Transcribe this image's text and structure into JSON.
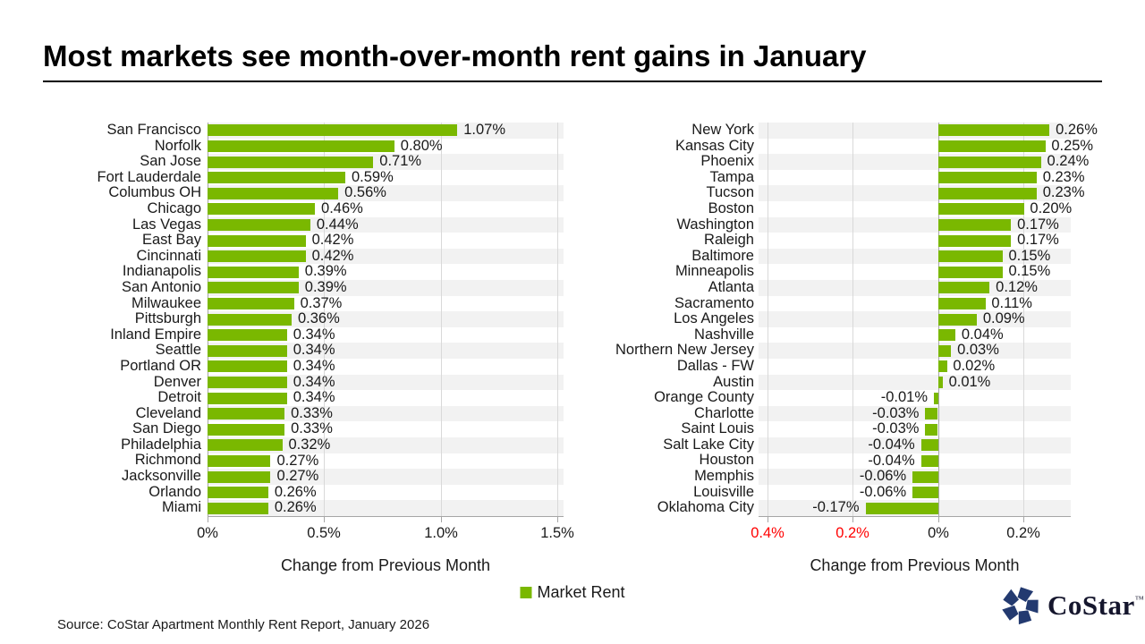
{
  "page": {
    "title": "Most markets see month-over-month rent gains in January",
    "source": "Source: CoStar Apartment Monthly Rent Report, January 2026"
  },
  "colors": {
    "bar_green": "#7ab800",
    "stripe_gray": "#f2f2f2",
    "gridline_gray": "#d9d9d9",
    "axis_gray": "#a6a6a6",
    "negative_tick_red": "#ff0000",
    "text_black": "#1a1a1a",
    "logo_navy": "#233a70",
    "logo_text": "#15162d"
  },
  "legend": {
    "label": "Market Rent",
    "position": "bottom-center"
  },
  "logo": {
    "wordmark": "CoStar",
    "trademark": "™",
    "icon": "costar-pinwheel-icon"
  },
  "chart_data": [
    {
      "type": "bar",
      "orientation": "horizontal",
      "series_name": "Market Rent",
      "title": "",
      "xlabel": "Change from Previous Month",
      "unit": "%",
      "xlim": [
        0,
        1.525
      ],
      "grid": true,
      "x_ticks": [
        {
          "value": 0,
          "label": "0%",
          "negative": false
        },
        {
          "value": 0.5,
          "label": "0.5%",
          "negative": false
        },
        {
          "value": 1.0,
          "label": "1.0%",
          "negative": false
        },
        {
          "value": 1.5,
          "label": "1.5%",
          "negative": false
        }
      ],
      "categories": [
        "San Francisco",
        "Norfolk",
        "San Jose",
        "Fort Lauderdale",
        "Columbus OH",
        "Chicago",
        "Las Vegas",
        "East Bay",
        "Cincinnati",
        "Indianapolis",
        "San Antonio",
        "Milwaukee",
        "Pittsburgh",
        "Inland Empire",
        "Seattle",
        "Portland OR",
        "Denver",
        "Detroit",
        "Cleveland",
        "San Diego",
        "Philadelphia",
        "Richmond",
        "Jacksonville",
        "Orlando",
        "Miami"
      ],
      "values": [
        1.07,
        0.8,
        0.71,
        0.59,
        0.56,
        0.46,
        0.44,
        0.42,
        0.42,
        0.39,
        0.39,
        0.37,
        0.36,
        0.34,
        0.34,
        0.34,
        0.34,
        0.34,
        0.33,
        0.33,
        0.32,
        0.27,
        0.27,
        0.26,
        0.26
      ],
      "value_labels": [
        "1.07%",
        "0.80%",
        "0.71%",
        "0.59%",
        "0.56%",
        "0.46%",
        "0.44%",
        "0.42%",
        "0.42%",
        "0.39%",
        "0.39%",
        "0.37%",
        "0.36%",
        "0.34%",
        "0.34%",
        "0.34%",
        "0.34%",
        "0.34%",
        "0.33%",
        "0.33%",
        "0.32%",
        "0.27%",
        "0.27%",
        "0.26%",
        "0.26%"
      ]
    },
    {
      "type": "bar",
      "orientation": "horizontal",
      "series_name": "Market Rent",
      "title": "",
      "xlabel": "Change from Previous Month",
      "unit": "%",
      "xlim": [
        -0.42,
        0.31
      ],
      "grid": true,
      "x_ticks": [
        {
          "value": -0.4,
          "label": "0.4%",
          "negative": true
        },
        {
          "value": -0.2,
          "label": "0.2%",
          "negative": true
        },
        {
          "value": 0,
          "label": "0%",
          "negative": false
        },
        {
          "value": 0.2,
          "label": "0.2%",
          "negative": false
        }
      ],
      "categories": [
        "New York",
        "Kansas City",
        "Phoenix",
        "Tampa",
        "Tucson",
        "Boston",
        "Washington",
        "Raleigh",
        "Baltimore",
        "Minneapolis",
        "Atlanta",
        "Sacramento",
        "Los Angeles",
        "Nashville",
        "Northern New Jersey",
        "Dallas - FW",
        "Austin",
        "Orange County",
        "Charlotte",
        "Saint Louis",
        "Salt Lake City",
        "Houston",
        "Memphis",
        "Louisville",
        "Oklahoma City"
      ],
      "values": [
        0.26,
        0.25,
        0.24,
        0.23,
        0.23,
        0.2,
        0.17,
        0.17,
        0.15,
        0.15,
        0.12,
        0.11,
        0.09,
        0.04,
        0.03,
        0.02,
        0.01,
        -0.01,
        -0.03,
        -0.03,
        -0.04,
        -0.04,
        -0.06,
        -0.06,
        -0.17
      ],
      "value_labels": [
        "0.26%",
        "0.25%",
        "0.24%",
        "0.23%",
        "0.23%",
        "0.20%",
        "0.17%",
        "0.17%",
        "0.15%",
        "0.15%",
        "0.12%",
        "0.11%",
        "0.09%",
        "0.04%",
        "0.03%",
        "0.02%",
        "0.01%",
        "-0.01%",
        "-0.03%",
        "-0.03%",
        "-0.04%",
        "-0.04%",
        "-0.06%",
        "-0.06%",
        "-0.17%"
      ]
    }
  ]
}
